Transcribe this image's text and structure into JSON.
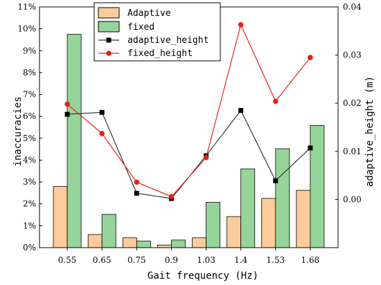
{
  "chart_data": {
    "type": "bar",
    "categories": [
      "0.55",
      "0.65",
      "0.75",
      "0.9",
      "1.03",
      "1.4",
      "1.53",
      "1.68"
    ],
    "xlabel": "Gait frequency (Hz)",
    "ylabel_left": "inaccuracies",
    "ylabel_right": "adaptive_height (m)",
    "ylim_left": [
      0,
      11
    ],
    "yticks_left": [
      "0%",
      "1%",
      "2%",
      "3%",
      "4%",
      "5%",
      "6%",
      "7%",
      "8%",
      "9%",
      "10%",
      "11%"
    ],
    "ylim_right": [
      -0.01,
      0.04
    ],
    "yticks_right": [
      "0.00",
      "0.01",
      "0.02",
      "0.03",
      "0.04"
    ],
    "legend_position": "top-center",
    "bar_series": [
      {
        "name": "Adaptive",
        "axis": "left",
        "color": "#fccb9a",
        "values": [
          2.8,
          0.6,
          0.45,
          0.12,
          0.45,
          1.42,
          2.25,
          2.62
        ]
      },
      {
        "name": "fixed",
        "axis": "left",
        "color": "#96d49a",
        "values": [
          9.75,
          1.52,
          0.3,
          0.35,
          2.07,
          3.6,
          4.52,
          5.58
        ]
      }
    ],
    "line_series": [
      {
        "name": "adaptive_height",
        "axis": "right",
        "color": "#333333",
        "marker": "square",
        "values": [
          0.0177,
          0.0181,
          0.0013,
          0.0002,
          0.0091,
          0.0185,
          0.0039,
          0.0107
        ]
      },
      {
        "name": "fixed_height",
        "axis": "right",
        "color": "#e8201a",
        "marker": "circle",
        "values": [
          0.0198,
          0.0137,
          0.0036,
          0.0006,
          0.0087,
          0.0363,
          0.0204,
          0.0295
        ]
      }
    ]
  }
}
